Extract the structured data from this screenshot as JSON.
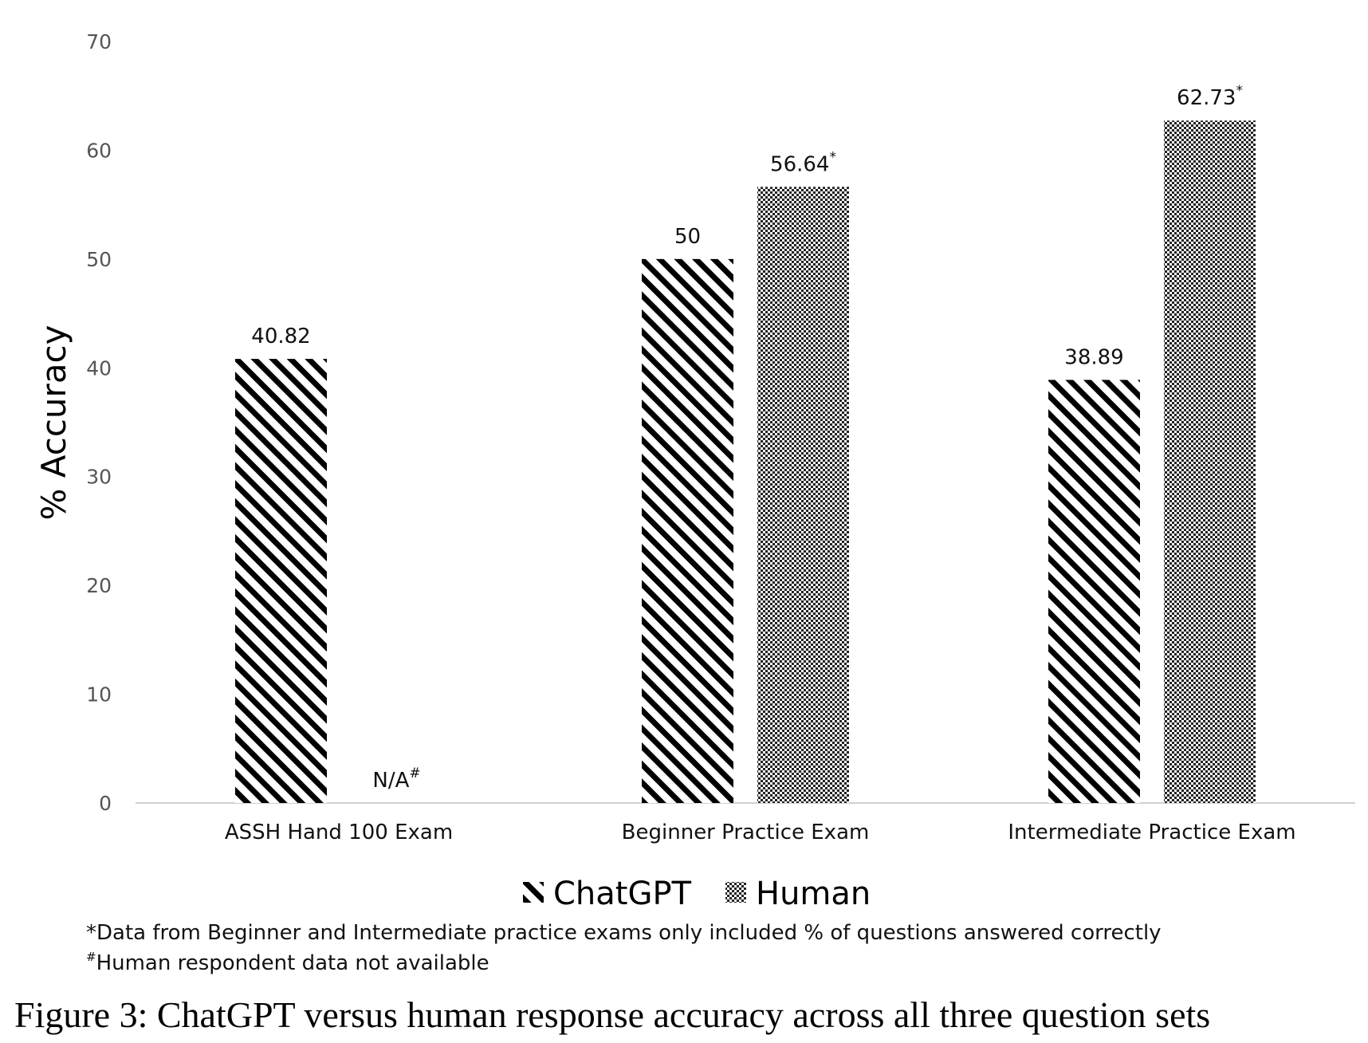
{
  "chart_data": {
    "type": "bar",
    "categories": [
      "ASSH Hand 100 Exam",
      "Beginner Practice Exam",
      "Intermediate Practice Exam"
    ],
    "series": [
      {
        "name": "ChatGPT",
        "values": [
          40.82,
          50,
          38.89
        ],
        "labels": [
          "40.82",
          "50",
          "38.89"
        ],
        "marks": [
          "",
          "",
          ""
        ],
        "pattern": "diagonal-stripes"
      },
      {
        "name": "Human",
        "values": [
          null,
          56.64,
          62.73
        ],
        "labels": [
          "N/A",
          "56.64",
          "62.73"
        ],
        "marks": [
          "#",
          "*",
          "*"
        ],
        "pattern": "checkered-dots"
      }
    ],
    "ylabel": "% Accuracy",
    "xlabel": "",
    "ylim": [
      0,
      70
    ],
    "yticks": [
      "0",
      "10",
      "20",
      "30",
      "40",
      "50",
      "60",
      "70"
    ],
    "legend_position": "bottom",
    "grid": false
  },
  "notes": {
    "line1_mark": "*",
    "line1_text": "Data from Beginner and Intermediate practice exams only included % of questions answered correctly",
    "line2_mark": "#",
    "line2_text": "Human respondent data not available"
  },
  "caption": "Figure 3: ChatGPT versus human response accuracy across all three question sets",
  "colors": {
    "bar_ink": "#000000",
    "axis": "#d0d0d0",
    "tick_text": "#555555"
  }
}
